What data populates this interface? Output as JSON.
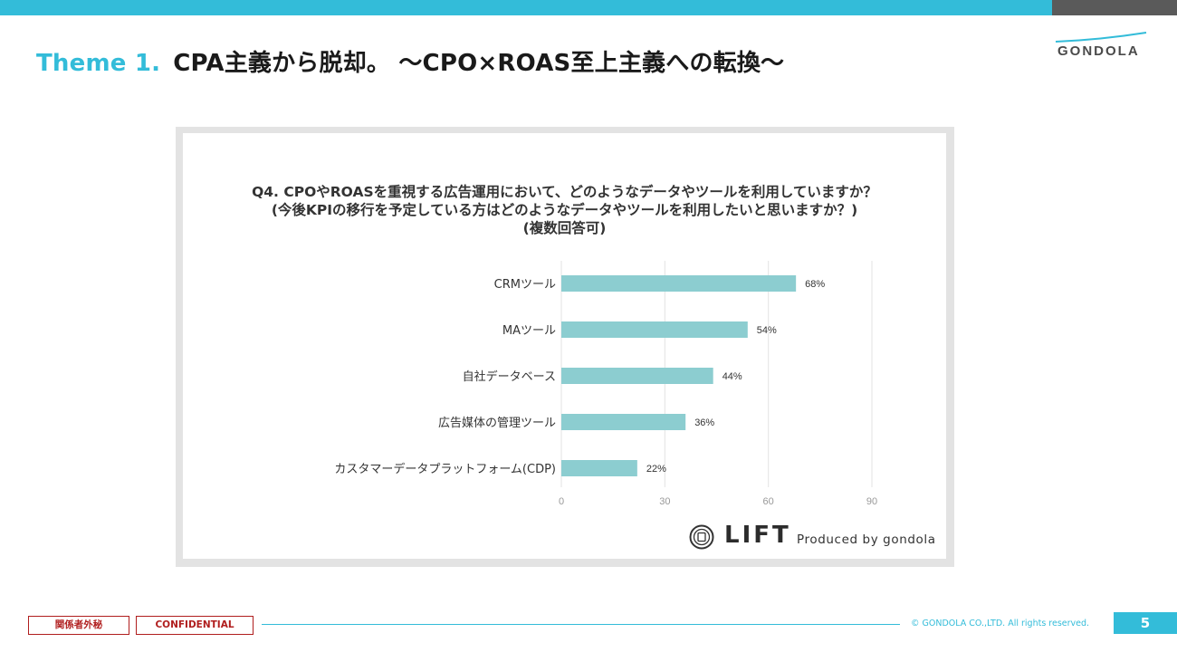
{
  "header": {
    "theme_label": "Theme 1.",
    "title": "CPA主義から脱却。 〜CPO×ROAS至上主義への転換〜",
    "logo_text": "GONDOLA"
  },
  "colors": {
    "accent": "#33bcd9",
    "bar": "#8ccdd0",
    "confidential": "#b01e1e",
    "grid": "#e3e3e3"
  },
  "question": {
    "line1": "Q4. CPOやROASを重視する広告運用において、どのようなデータやツールを利用していますか？",
    "line2": "(今後KPIの移行を予定している方はどのようなデータやツールを利用したいと思いますか？)",
    "line3": "(複数回答可)"
  },
  "chart_data": {
    "type": "bar",
    "orientation": "horizontal",
    "categories": [
      "CRMツール",
      "MAツール",
      "自社データベース",
      "広告媒体の管理ツール",
      "カスタマーデータプラットフォーム(CDP)"
    ],
    "values": [
      68,
      54,
      44,
      36,
      22
    ],
    "value_labels": [
      "68%",
      "54%",
      "44%",
      "36%",
      "22%"
    ],
    "xlim": [
      0,
      90
    ],
    "xticks": [
      0,
      30,
      60,
      90
    ],
    "grid": true,
    "title": "",
    "xlabel": "",
    "ylabel": ""
  },
  "branding": {
    "lift": "LIFT",
    "produced_by": "Produced by gondola"
  },
  "footer": {
    "label_jp": "関係者外秘",
    "label_en": "CONFIDENTIAL",
    "copyright": "© GONDOLA CO.,LTD. All rights reserved.",
    "page_number": "5"
  }
}
